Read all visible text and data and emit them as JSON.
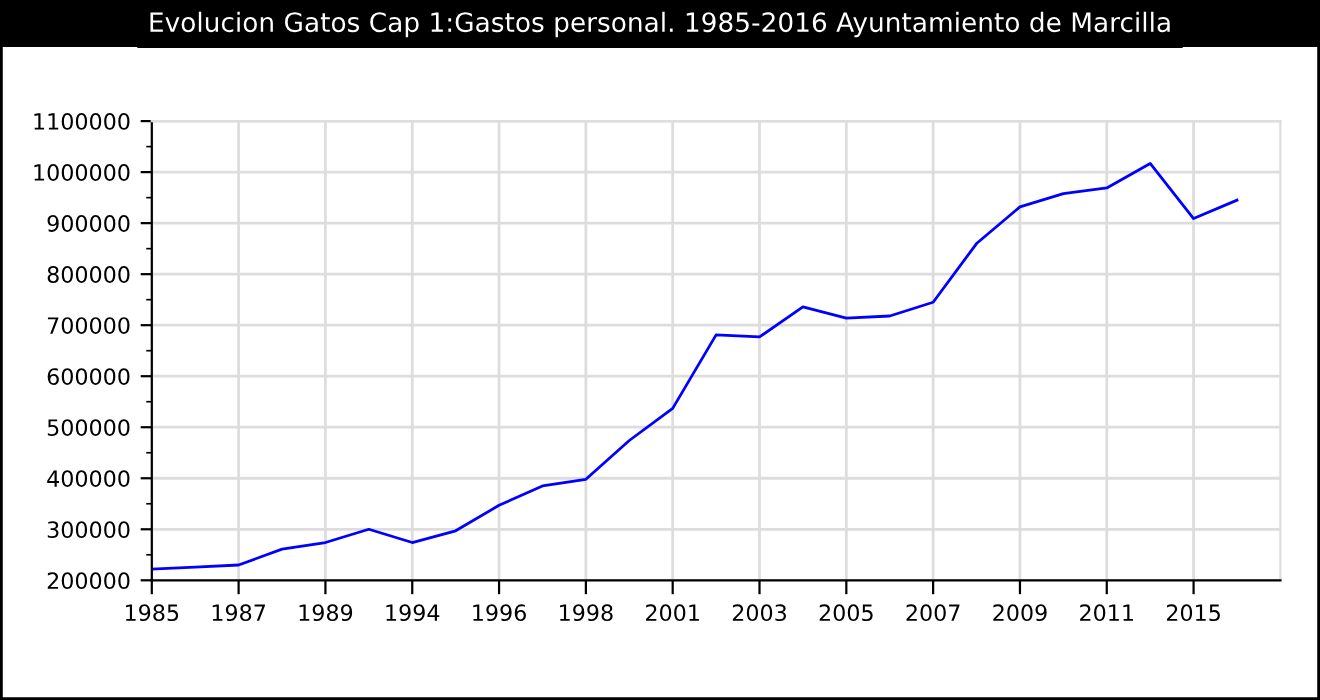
{
  "chart_data": {
    "type": "line",
    "title": "Evolucion Gatos Cap 1:Gastos personal. 1985-2016 Ayuntamiento de Marcilla",
    "categories": [
      "1985",
      null,
      "1987",
      null,
      "1989",
      null,
      "1994",
      null,
      "1996",
      null,
      "1998",
      null,
      "2001",
      null,
      "2003",
      null,
      "2005",
      null,
      "2007",
      null,
      "2009",
      null,
      "2011",
      null,
      "2015",
      null
    ],
    "series": [
      {
        "color": "#0000ff",
        "values": [
          222000,
          226000,
          230000,
          261000,
          274000,
          300000,
          274000,
          297000,
          347000,
          385000,
          398000,
          474000,
          537000,
          681000,
          677000,
          736000,
          714000,
          718000,
          745000,
          860000,
          932000,
          958000,
          969000,
          1017000,
          909000,
          945000
        ]
      }
    ],
    "ylim": [
      200000,
      1100000
    ],
    "yticks": [
      200000,
      300000,
      400000,
      500000,
      600000,
      700000,
      800000,
      900000,
      1000000,
      1100000
    ],
    "grid": true,
    "marker": "none",
    "line_style": "solid",
    "legend": false
  }
}
